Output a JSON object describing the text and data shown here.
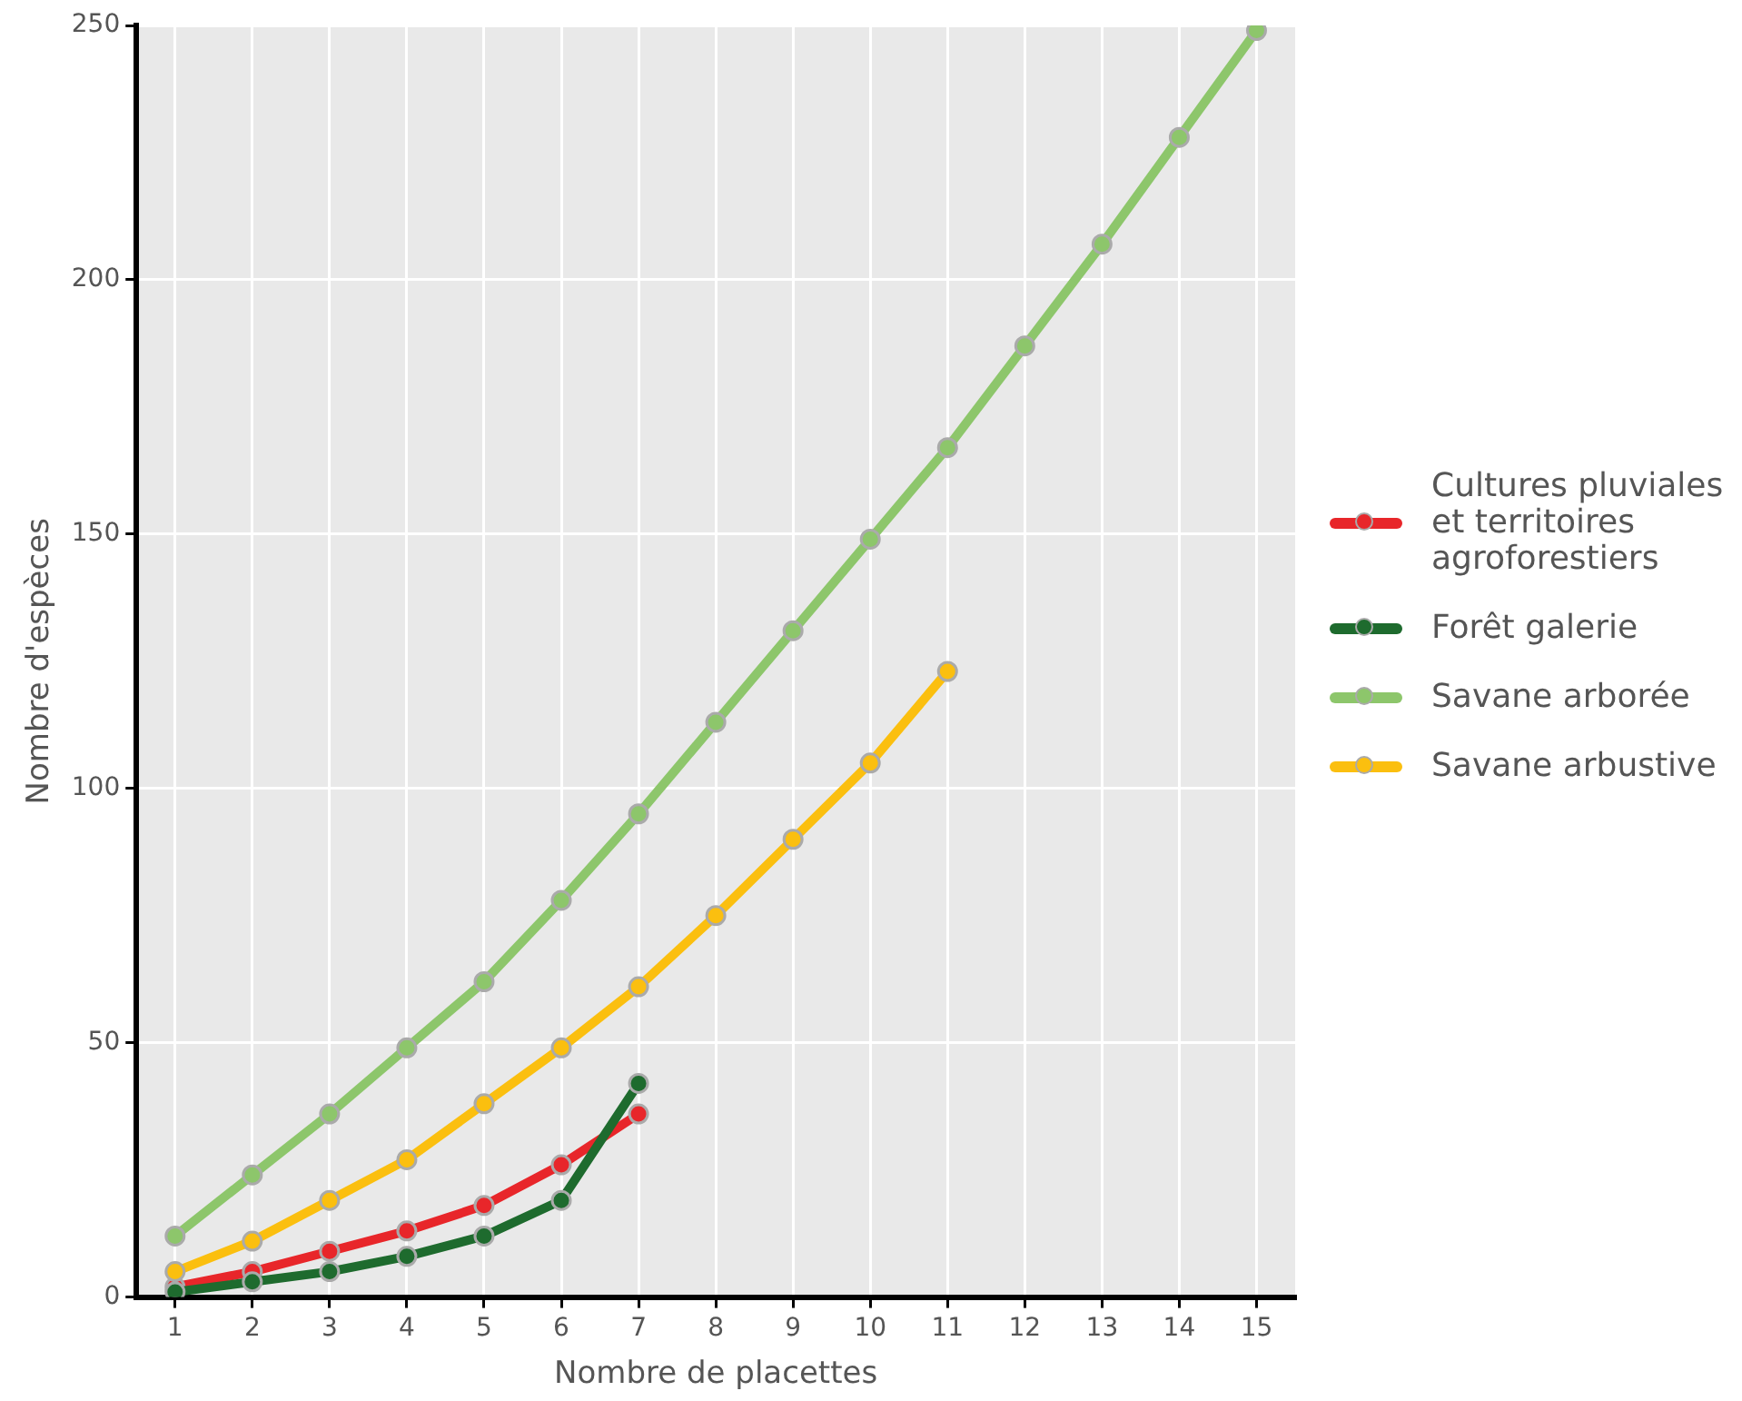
{
  "chart_data": {
    "type": "line",
    "xlabel": "Nombre de placettes",
    "ylabel": "Nombre d'espèces",
    "x": [
      1,
      2,
      3,
      4,
      5,
      6,
      7,
      8,
      9,
      10,
      11,
      12,
      13,
      14,
      15
    ],
    "xlim": [
      0.5,
      15.5
    ],
    "xticks": [
      1,
      2,
      3,
      4,
      5,
      6,
      7,
      8,
      9,
      10,
      11,
      12,
      13,
      14,
      15
    ],
    "ylim": [
      0,
      250
    ],
    "yticks": [
      0,
      50,
      100,
      150,
      200,
      250
    ],
    "grid": true,
    "legend": "right",
    "marker": "circle",
    "line_style": "solid",
    "series": [
      {
        "name": "Cultures pluviales et territoires agroforestiers",
        "color": "#e8262a",
        "values": [
          2,
          5,
          9,
          13,
          18,
          26,
          36,
          null,
          null,
          null,
          null,
          null,
          null,
          null,
          null
        ]
      },
      {
        "name": "Forêt galerie",
        "color": "#1e6b2e",
        "values": [
          1,
          3,
          5,
          8,
          12,
          19,
          42,
          null,
          null,
          null,
          null,
          null,
          null,
          null,
          null
        ]
      },
      {
        "name": "Savane arborée",
        "color": "#8dc66b",
        "values": [
          12,
          24,
          36,
          49,
          62,
          78,
          95,
          113,
          131,
          149,
          167,
          187,
          207,
          228,
          249
        ]
      },
      {
        "name": "Savane arbustive",
        "color": "#fbbf0f",
        "values": [
          5,
          11,
          19,
          27,
          38,
          49,
          61,
          75,
          90,
          105,
          123,
          null,
          null,
          null,
          null
        ]
      }
    ]
  }
}
